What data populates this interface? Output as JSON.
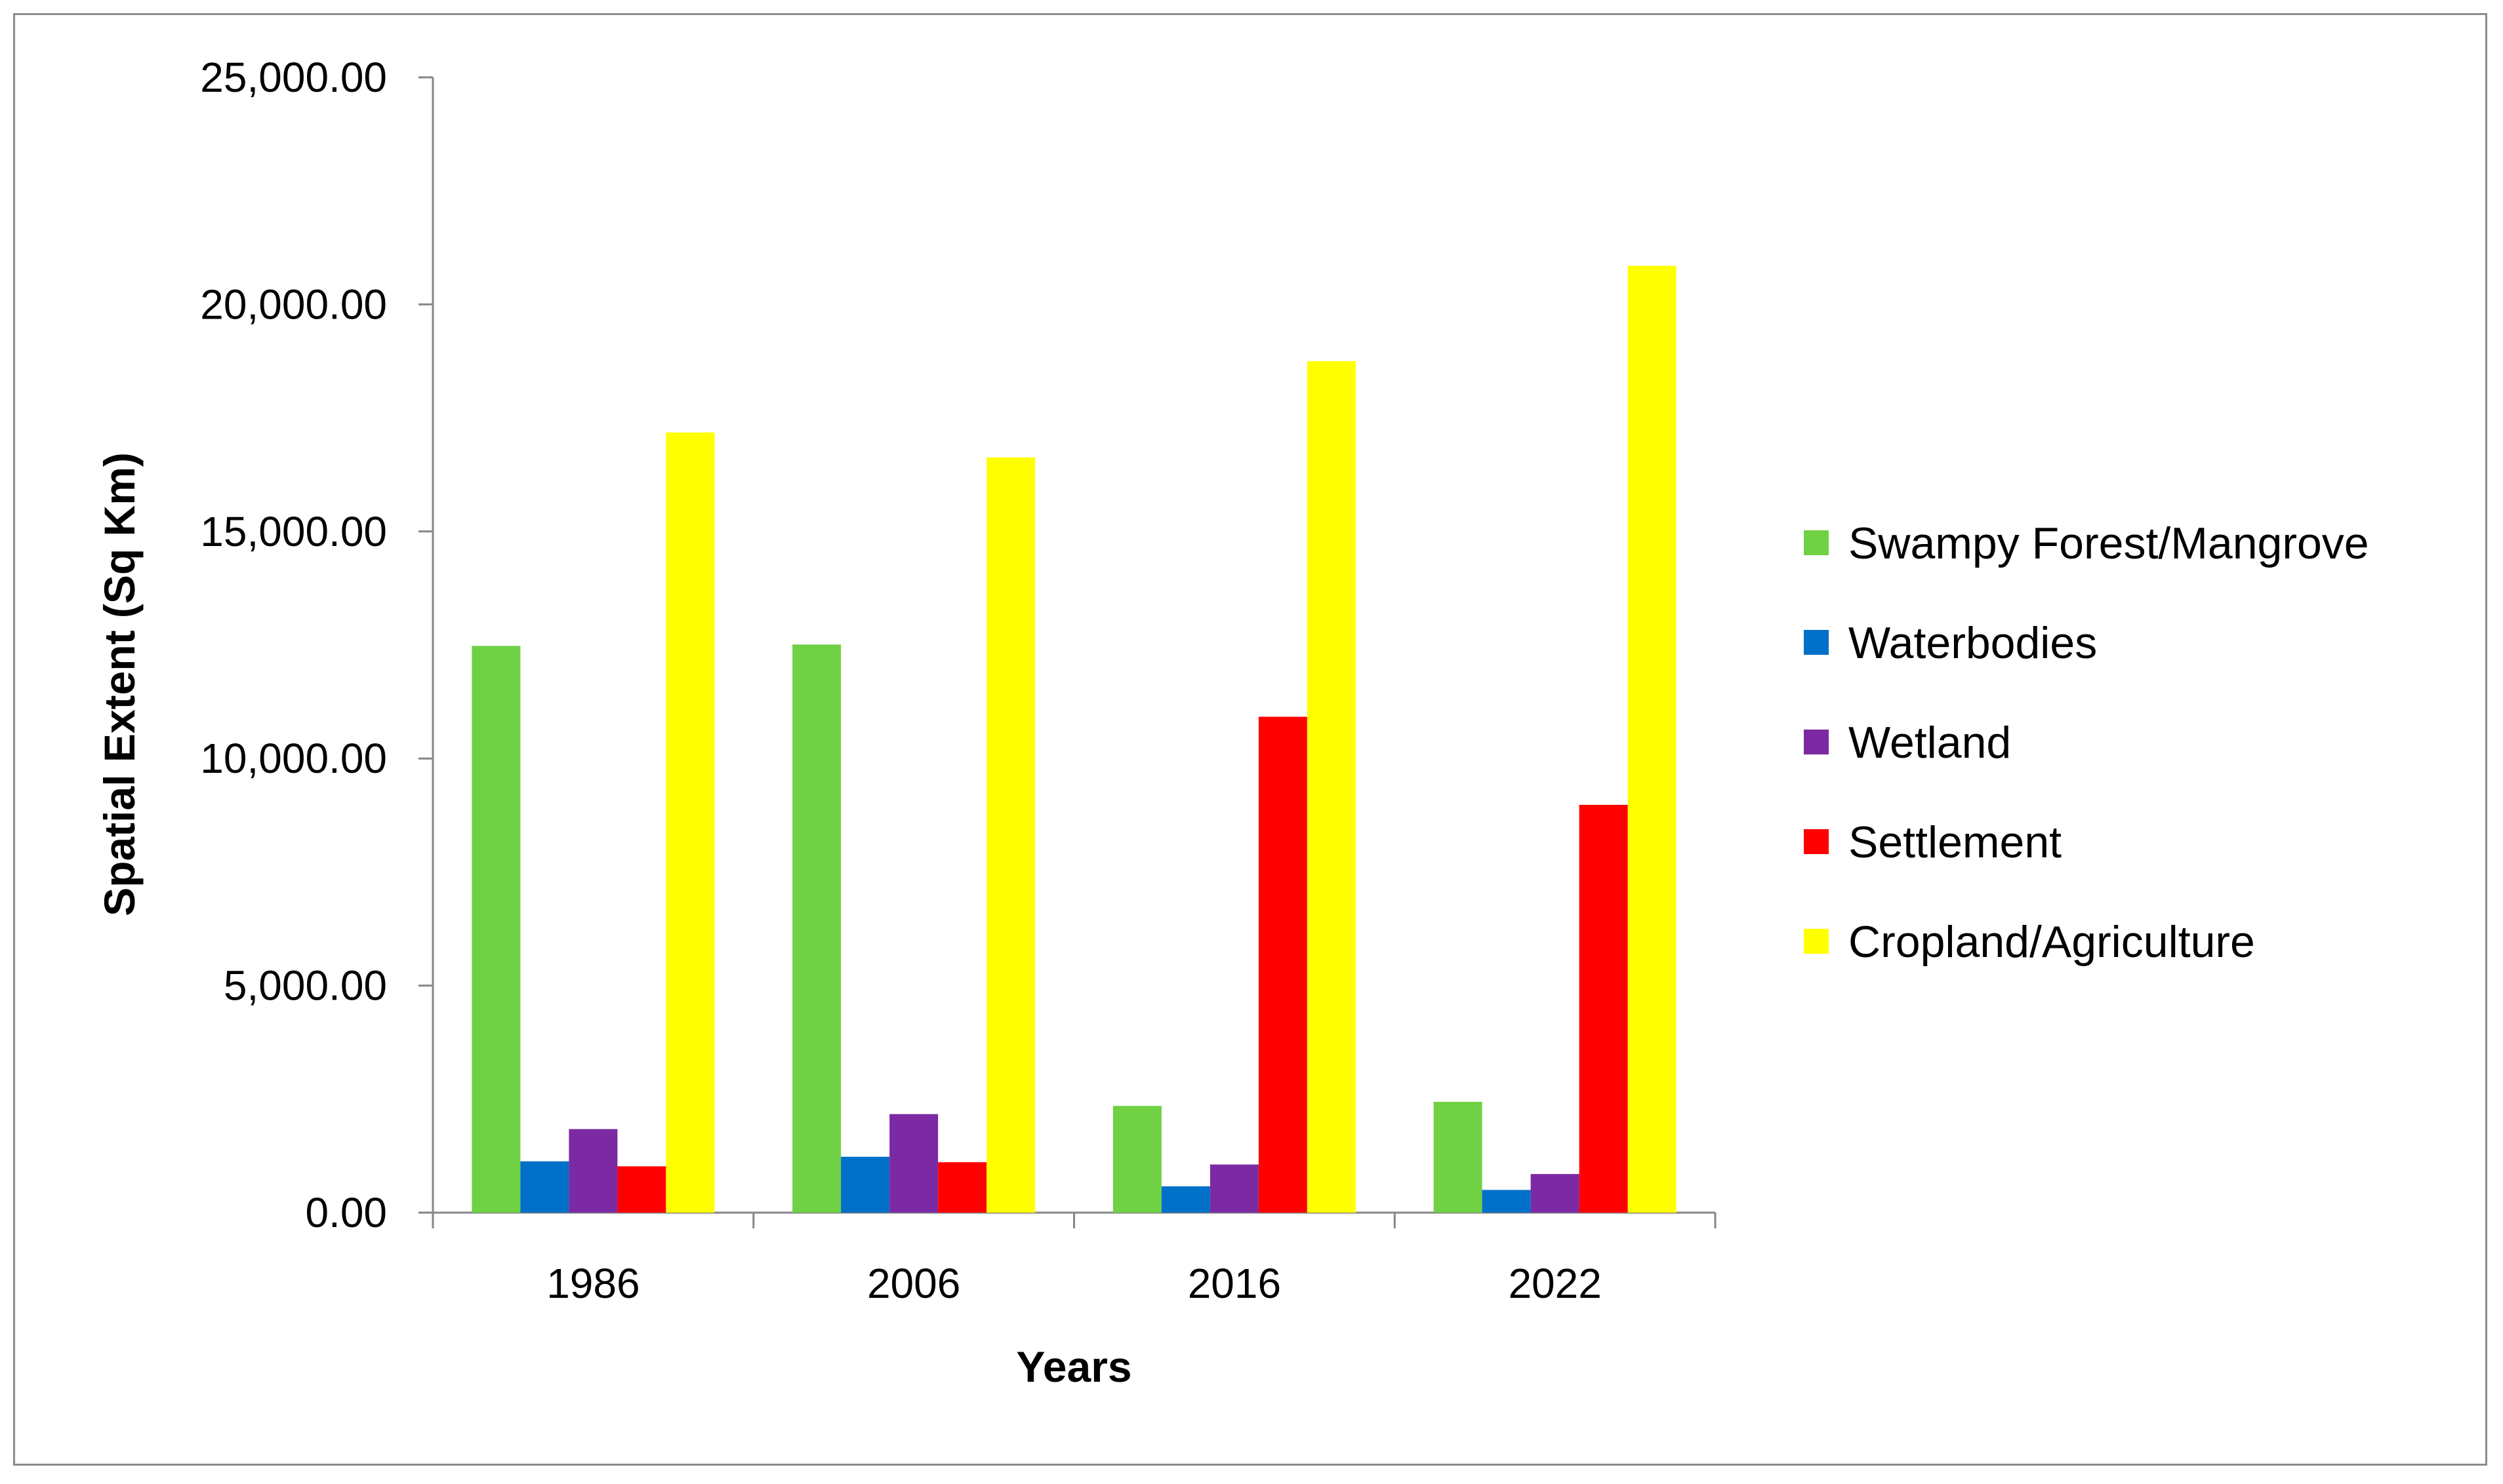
{
  "chart_data": {
    "type": "bar",
    "categories": [
      "1986",
      "2006",
      "2016",
      "2022"
    ],
    "series": [
      {
        "name": "Swampy Forest/Mangrove",
        "color": "#6fd143",
        "values": [
          12480,
          12510,
          2350,
          2440
        ]
      },
      {
        "name": "Waterbodies",
        "color": "#0070c8",
        "values": [
          1130,
          1230,
          580,
          500
        ]
      },
      {
        "name": "Wetland",
        "color": "#7b2aa3",
        "values": [
          1840,
          2170,
          1060,
          850
        ]
      },
      {
        "name": "Settlement",
        "color": "#ff0000",
        "values": [
          1020,
          1110,
          10920,
          8980
        ]
      },
      {
        "name": "Cropland/Agriculture",
        "color": "#ffff00",
        "values": [
          17180,
          16630,
          18750,
          20850
        ]
      }
    ],
    "xlabel": "Years",
    "ylabel": "Spatial Extent (Sq Km)",
    "ylim": [
      0,
      25000
    ],
    "yticks": [
      "0.00",
      "5,000.00",
      "10,000.00",
      "15,000.00",
      "20,000.00",
      "25,000.00"
    ],
    "ytick_values": [
      0,
      5000,
      10000,
      15000,
      20000,
      25000
    ],
    "grid": false,
    "legend": "right"
  }
}
